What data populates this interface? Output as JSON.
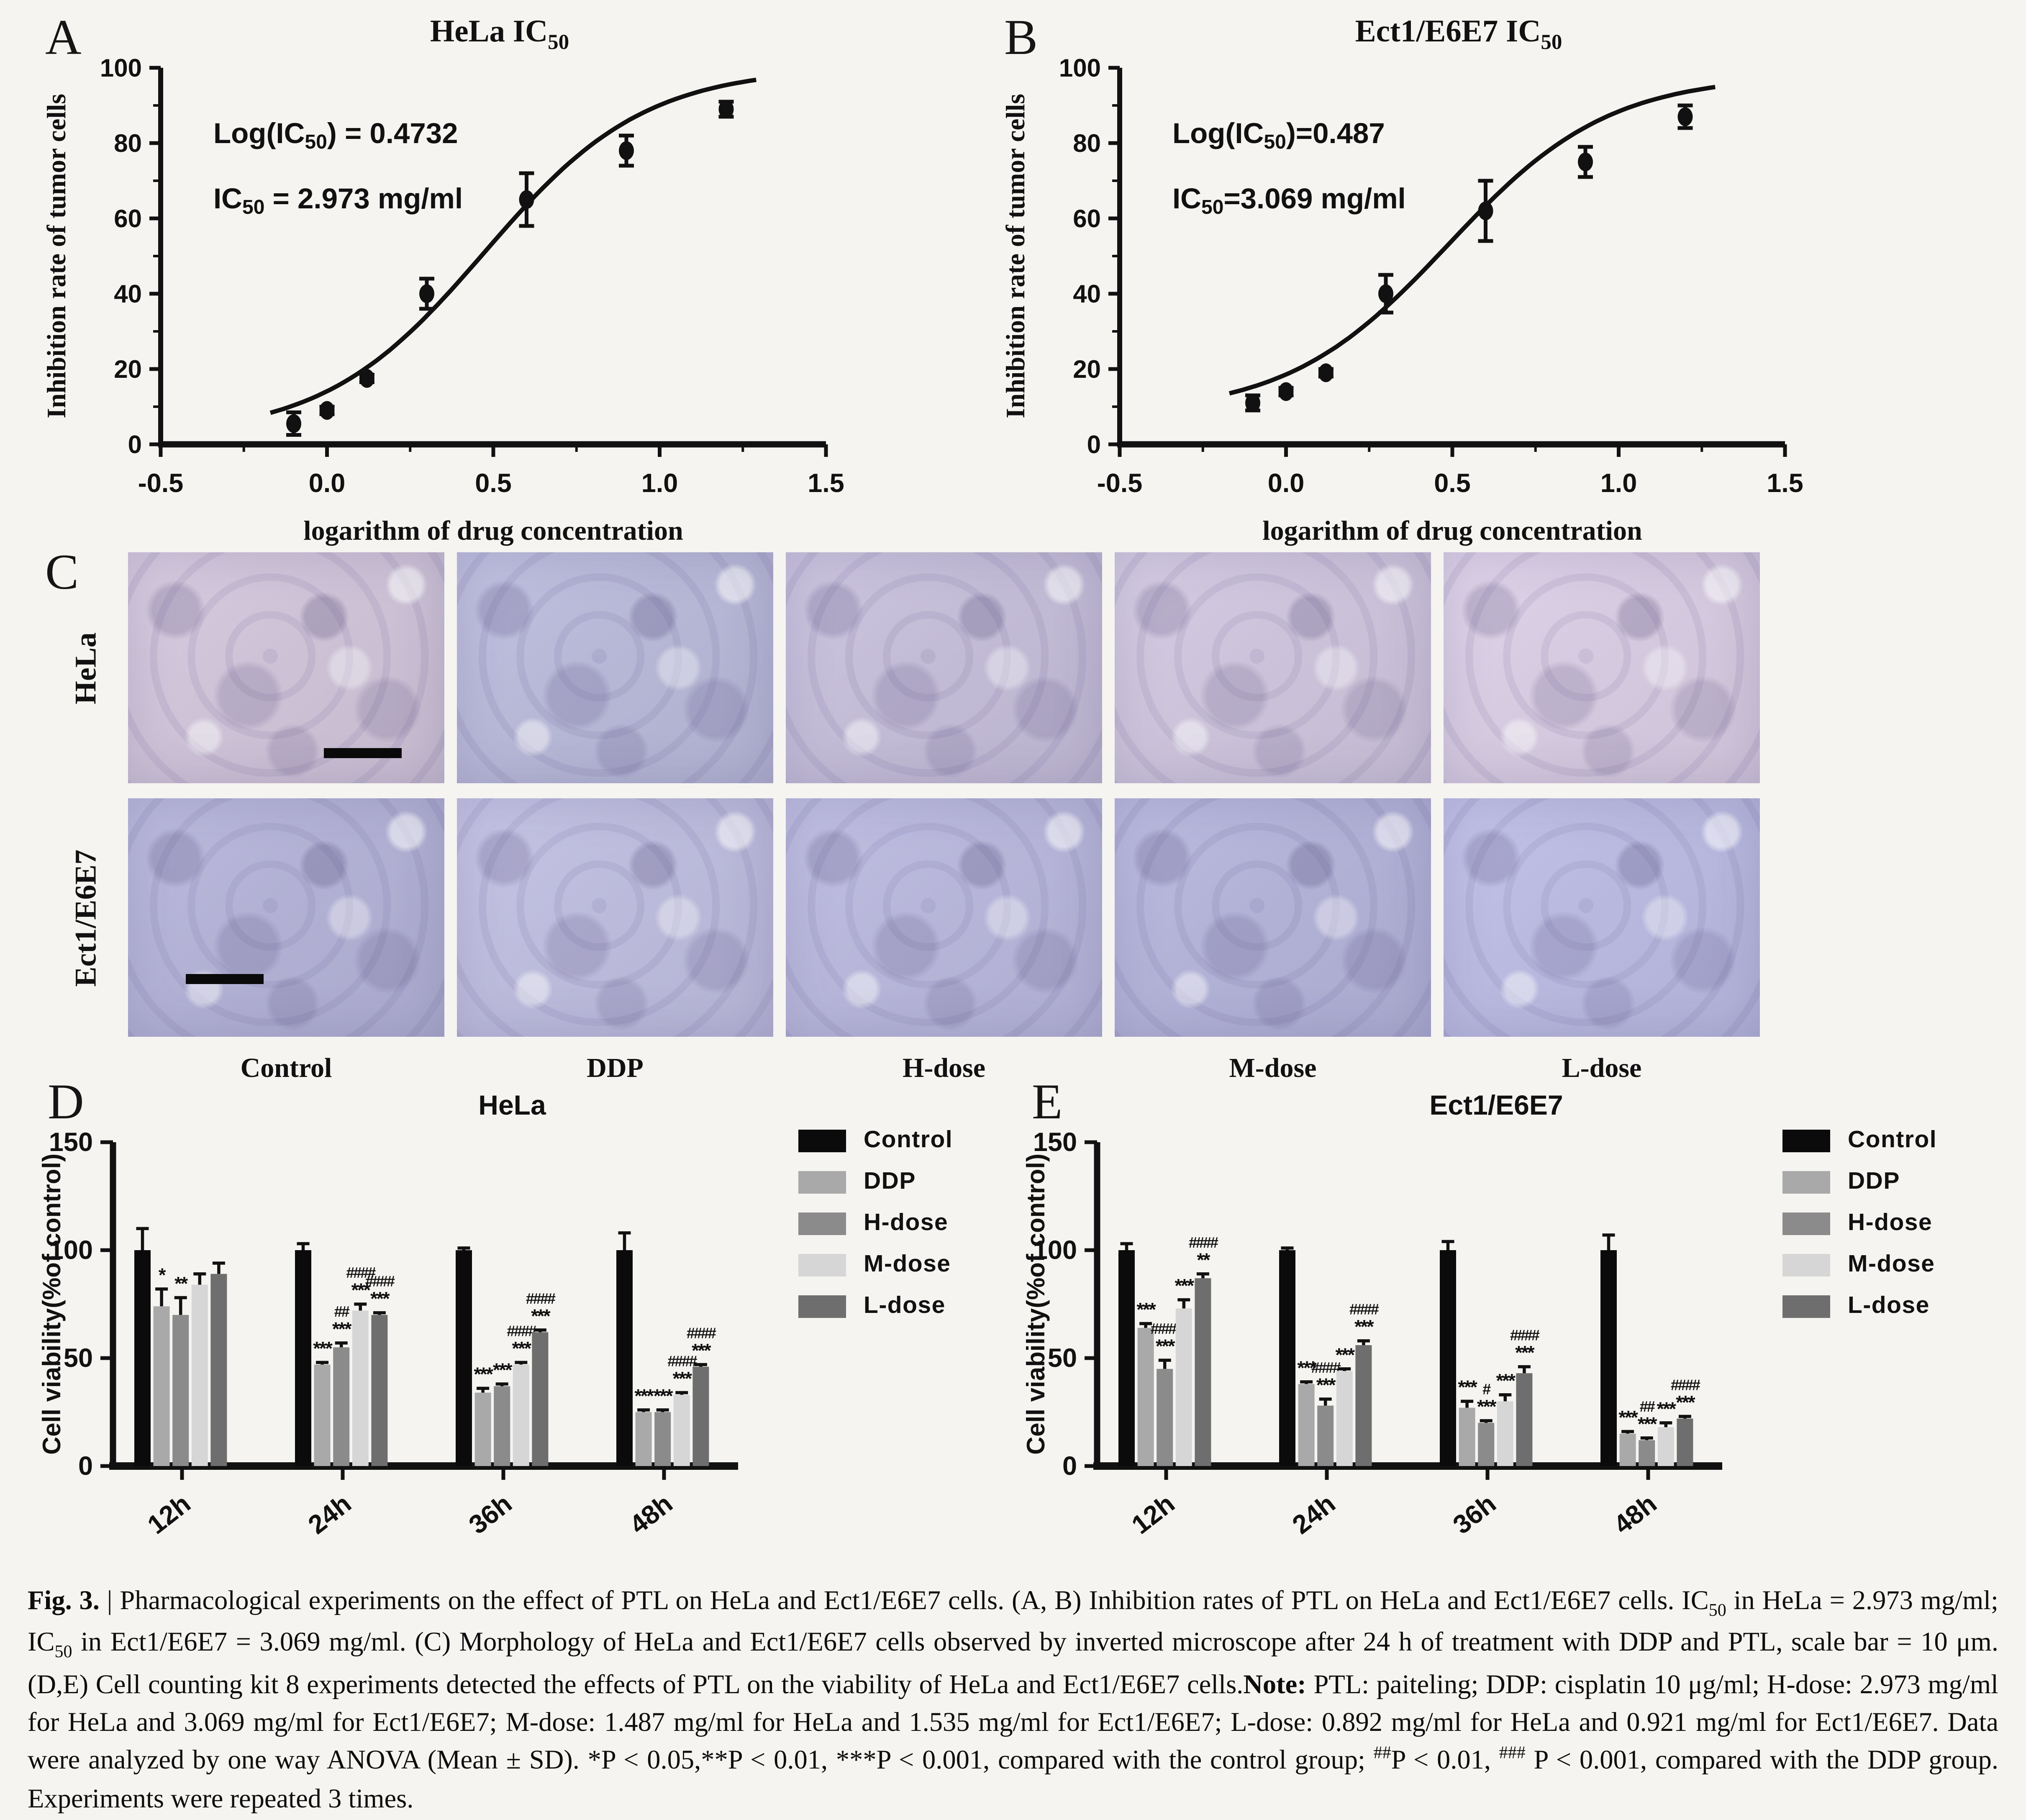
{
  "figure": {
    "background": "#f5f4f1",
    "panels": {
      "a": "A",
      "b": "B",
      "c": "C",
      "d": "D",
      "e": "E"
    }
  },
  "chart_data": [
    {
      "id": "hela_ic50",
      "type": "scatter",
      "title": "HeLa IC_{50}",
      "xlabel": "logarithm of drug concentration",
      "ylabel": "Inhibition rate of tumor cells",
      "xlim": [
        -0.5,
        1.5
      ],
      "ylim": [
        0,
        100
      ],
      "xticks": [
        {
          "v": -0.5,
          "label": "-0.5"
        },
        {
          "v": 0,
          "label": "0.0"
        },
        {
          "v": 0.5,
          "label": "0.5"
        },
        {
          "v": 1.0,
          "label": "1.0"
        },
        {
          "v": 1.5,
          "label": "1.5"
        }
      ],
      "yticks": [
        0,
        20,
        40,
        60,
        80,
        100
      ],
      "annotation_lines": [
        "Log(IC_{50}) = 0.4732",
        "IC_{50} = 2.973 mg/ml"
      ],
      "fit": {
        "top": 100,
        "bottom": 2,
        "logic50": 0.4732,
        "slope": 1.8,
        "xstart": -0.17,
        "xend": 1.3
      },
      "points": {
        "x": [
          -0.1,
          0.0,
          0.12,
          0.3,
          0.6,
          0.9,
          1.2
        ],
        "y": [
          5.5,
          9,
          17.5,
          40,
          65,
          78,
          89
        ],
        "err": [
          3,
          1,
          1,
          4,
          7,
          4,
          2
        ]
      }
    },
    {
      "id": "ect1_ic50",
      "type": "scatter",
      "title": "Ect1/E6E7  IC_{50}",
      "xlabel": "logarithm of drug concentration",
      "ylabel": "Inhibition rate of tumor cells",
      "xlim": [
        -0.5,
        1.5
      ],
      "ylim": [
        0,
        100
      ],
      "xticks": [
        {
          "v": -0.5,
          "label": "-0.5"
        },
        {
          "v": 0,
          "label": "0.0"
        },
        {
          "v": 0.5,
          "label": "0.5"
        },
        {
          "v": 1.0,
          "label": "1.0"
        },
        {
          "v": 1.5,
          "label": "1.5"
        }
      ],
      "yticks": [
        0,
        20,
        40,
        60,
        80,
        100
      ],
      "annotation_lines": [
        "Log(IC_{50})=0.487",
        "IC_{50}=3.069 mg/ml"
      ],
      "fit": {
        "top": 98,
        "bottom": 8,
        "logic50": 0.487,
        "slope": 1.8,
        "xstart": -0.17,
        "xend": 1.3
      },
      "points": {
        "x": [
          -0.1,
          0.0,
          0.12,
          0.3,
          0.6,
          0.9,
          1.2
        ],
        "y": [
          11,
          14,
          19,
          40,
          62,
          75,
          87
        ],
        "err": [
          2,
          1,
          1,
          5,
          8,
          4,
          3
        ]
      }
    },
    {
      "id": "hela_viability",
      "type": "bar",
      "title": "HeLa",
      "ylabel": "Cell viability(%of control)",
      "ylim": [
        0,
        150
      ],
      "yticks": [
        0,
        50,
        100,
        150
      ],
      "categories": [
        "12h",
        "24h",
        "36h",
        "48h"
      ],
      "legend": [
        "Control",
        "DDP",
        "H-dose",
        "M-dose",
        "L-dose"
      ],
      "series": [
        {
          "name": "Control",
          "color": "#0b0b0b",
          "values": [
            100,
            100,
            100,
            100
          ],
          "err": [
            10,
            3,
            1,
            8
          ],
          "stars": [
            "",
            "",
            "",
            ""
          ],
          "hashes": [
            "",
            "",
            "",
            ""
          ]
        },
        {
          "name": "DDP",
          "color": "#a9a9a9",
          "values": [
            74,
            47,
            34,
            25
          ],
          "err": [
            8,
            1,
            2,
            1
          ],
          "stars": [
            "*",
            "***",
            "***",
            "***"
          ],
          "hashes": [
            "",
            "",
            "",
            ""
          ]
        },
        {
          "name": "H-dose",
          "color": "#8b8b8b",
          "values": [
            70,
            55,
            37,
            25
          ],
          "err": [
            8,
            2,
            1,
            1
          ],
          "stars": [
            "**",
            "***",
            "***",
            "***"
          ],
          "hashes": [
            "",
            "##",
            "",
            ""
          ]
        },
        {
          "name": "M-dose",
          "color": "#d6d6d6",
          "values": [
            84,
            72,
            47,
            33
          ],
          "err": [
            5,
            3,
            1,
            1
          ],
          "stars": [
            "",
            "***",
            "***",
            "***"
          ],
          "hashes": [
            "",
            "####",
            "####",
            "####"
          ]
        },
        {
          "name": "L-dose",
          "color": "#6e6e6e",
          "values": [
            89,
            70,
            62,
            46
          ],
          "err": [
            5,
            1,
            1,
            1
          ],
          "stars": [
            "",
            "***",
            "***",
            "***"
          ],
          "hashes": [
            "",
            "####",
            "####",
            "####"
          ]
        }
      ]
    },
    {
      "id": "ect1_viability",
      "type": "bar",
      "title": "Ect1/E6E7",
      "ylabel": "Cell viability(%of control)",
      "ylim": [
        0,
        150
      ],
      "yticks": [
        0,
        50,
        100,
        150
      ],
      "categories": [
        "12h",
        "24h",
        "36h",
        "48h"
      ],
      "legend": [
        "Control",
        "DDP",
        "H-dose",
        "M-dose",
        "L-dose"
      ],
      "series": [
        {
          "name": "Control",
          "color": "#0b0b0b",
          "values": [
            100,
            100,
            100,
            100
          ],
          "err": [
            3,
            1,
            4,
            7
          ],
          "stars": [
            "",
            "",
            "",
            ""
          ],
          "hashes": [
            "",
            "",
            "",
            ""
          ]
        },
        {
          "name": "DDP",
          "color": "#a9a9a9",
          "values": [
            64,
            38,
            27,
            15
          ],
          "err": [
            2,
            1,
            3,
            1
          ],
          "stars": [
            "***",
            "***",
            "***",
            "***"
          ],
          "hashes": [
            "",
            "",
            "",
            ""
          ]
        },
        {
          "name": "H-dose",
          "color": "#8b8b8b",
          "values": [
            45,
            28,
            20,
            12
          ],
          "err": [
            4,
            3,
            1,
            1
          ],
          "stars": [
            "***",
            "***",
            "***",
            "***"
          ],
          "hashes": [
            "####",
            "####",
            "#",
            "##"
          ]
        },
        {
          "name": "M-dose",
          "color": "#d6d6d6",
          "values": [
            73,
            44,
            30,
            18
          ],
          "err": [
            4,
            1,
            3,
            2
          ],
          "stars": [
            "***",
            "***",
            "***",
            "***"
          ],
          "hashes": [
            "",
            "",
            "",
            ""
          ]
        },
        {
          "name": "L-dose",
          "color": "#6e6e6e",
          "values": [
            87,
            56,
            43,
            22
          ],
          "err": [
            2,
            2,
            3,
            1
          ],
          "stars": [
            "**",
            "***",
            "***",
            "***"
          ],
          "hashes": [
            "####",
            "####",
            "####",
            "####"
          ]
        }
      ]
    }
  ],
  "micrographs": {
    "row_labels": [
      "HeLa",
      "Ect1/E6E7"
    ],
    "col_labels": [
      "Control",
      "DDP",
      "H-dose",
      "M-dose",
      "L-dose"
    ],
    "tints": [
      [
        "#cdc2d6",
        "#b7b7d6",
        "#c3bcd6",
        "#ccc3da",
        "#d5cadf"
      ],
      [
        "#b2b1d4",
        "#bcbbdb",
        "#b7b6d9",
        "#b2b1d6",
        "#b9b9df"
      ]
    ],
    "scale_bars": [
      {
        "row": 0,
        "col": 0,
        "side": "right"
      },
      {
        "row": 1,
        "col": 0,
        "side": "left"
      }
    ]
  },
  "caption": {
    "segments": [
      {
        "t": "Fig. 3.",
        "b": true
      },
      {
        "t": " | Pharmacological experiments on the effect of PTL on HeLa and Ect1/E6E7 cells. (A, B) Inhibition rates of PTL on HeLa and Ect1/E6E7 cells. IC"
      },
      {
        "t": "50",
        "sub": true
      },
      {
        "t": " in HeLa = 2.973 mg/ml; IC"
      },
      {
        "t": "50",
        "sub": true
      },
      {
        "t": " in Ect1/E6E7 = 3.069 mg/ml. (C) Morphology of HeLa and Ect1/E6E7 cells observed by inverted microscope after 24 h of treatment with DDP and PTL, scale bar = 10 μm. (D,E) Cell counting kit 8 experiments detected the effects of PTL on the viability of HeLa and Ect1/E6E7 cells."
      },
      {
        "t": "Note:",
        "b": true
      },
      {
        "t": " PTL: paiteling; DDP: cisplatin 10 μg/ml; H-dose: 2.973 mg/ml for HeLa and 3.069 mg/ml for Ect1/E6E7; M-dose: 1.487 mg/ml for HeLa and 1.535 mg/ml for Ect1/E6E7; L-dose: 0.892 mg/ml for HeLa and 0.921 mg/ml for Ect1/E6E7. Data were analyzed by one way ANOVA (Mean ± SD). *P < 0.05,**P < 0.01, ***P < 0.001, compared with the control group; "
      },
      {
        "t": "##",
        "sup": true
      },
      {
        "t": "P < 0.01, "
      },
      {
        "t": "###",
        "sup": true
      },
      {
        "t": " P < 0.001, compared with the DDP group. Experiments were repeated 3 times."
      }
    ]
  }
}
